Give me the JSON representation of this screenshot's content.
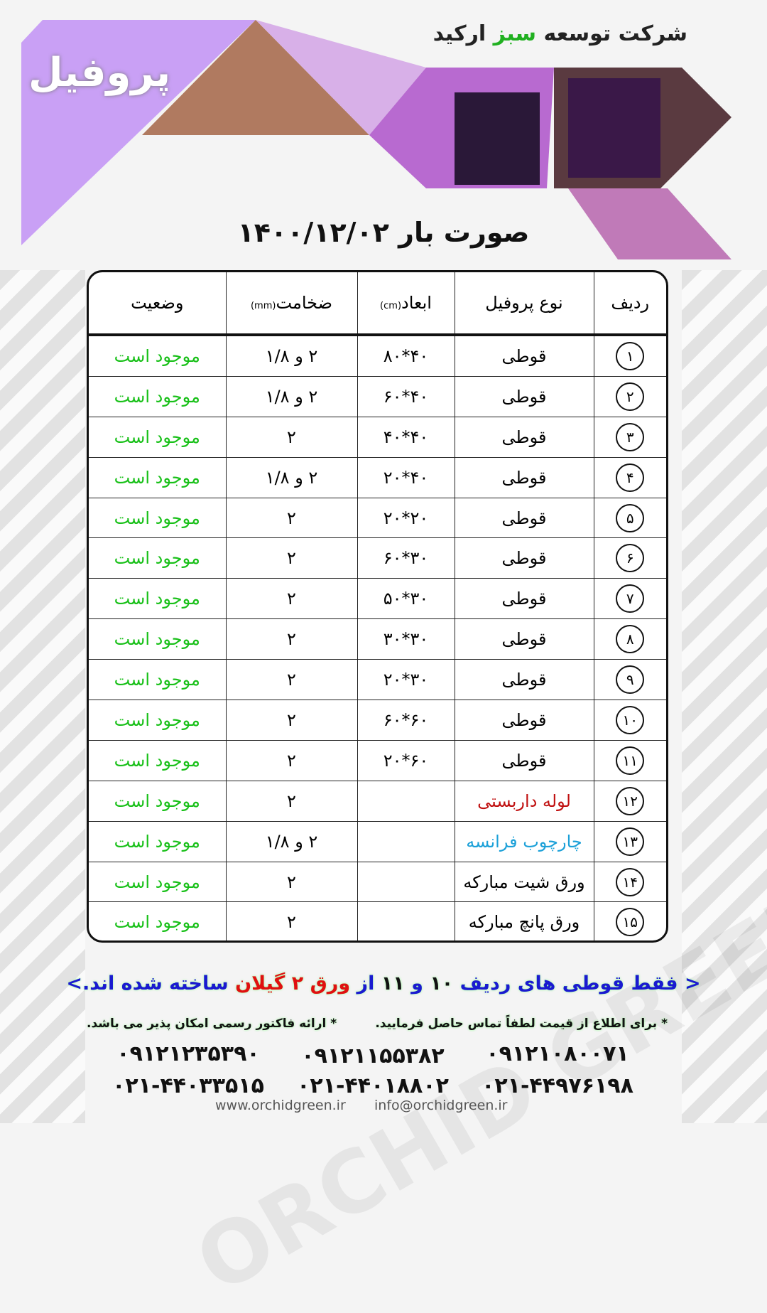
{
  "header": {
    "company_pre": "شرکت توسعه ",
    "company_green": "سبز",
    "company_post": " ارکید",
    "profile": "پروفیل",
    "date_title": "صورت بار ۱۴۰۰/۱۲/۰۲"
  },
  "watermark": "ORCHID GREEN DEVELOPMENT",
  "colors": {
    "accent": "#c9a0f5",
    "status": "#18c018",
    "red": "#c01010",
    "blue": "#1ba0d8"
  },
  "table": {
    "headers": {
      "row": "ردیف",
      "type": "نوع پروفیل",
      "dims": "ابعاد",
      "dims_unit": "(cm)",
      "thick": "ضخامت",
      "thick_unit": "(mm)",
      "status": "وضعیت"
    },
    "rows": [
      {
        "n": "۱",
        "type": "قوطی",
        "dims": "۴۰*۸۰",
        "thick": "۲ و ۱/۸",
        "status": "موجود است"
      },
      {
        "n": "۲",
        "type": "قوطی",
        "dims": "۴۰*۶۰",
        "thick": "۲ و ۱/۸",
        "status": "موجود است"
      },
      {
        "n": "۳",
        "type": "قوطی",
        "dims": "۴۰*۴۰",
        "thick": "۲",
        "status": "موجود است"
      },
      {
        "n": "۴",
        "type": "قوطی",
        "dims": "۴۰*۲۰",
        "thick": "۲ و ۱/۸",
        "status": "موجود است"
      },
      {
        "n": "۵",
        "type": "قوطی",
        "dims": "۲۰*۲۰",
        "thick": "۲",
        "status": "موجود است"
      },
      {
        "n": "۶",
        "type": "قوطی",
        "dims": "۳۰*۶۰",
        "thick": "۲",
        "status": "موجود است"
      },
      {
        "n": "۷",
        "type": "قوطی",
        "dims": "۳۰*۵۰",
        "thick": "۲",
        "status": "موجود است"
      },
      {
        "n": "۸",
        "type": "قوطی",
        "dims": "۳۰*۳۰",
        "thick": "۲",
        "status": "موجود است"
      },
      {
        "n": "۹",
        "type": "قوطی",
        "dims": "۳۰*۲۰",
        "thick": "۲",
        "status": "موجود است"
      },
      {
        "n": "۱۰",
        "type": "قوطی",
        "dims": "۶۰*۶۰",
        "thick": "۲",
        "status": "موجود است"
      },
      {
        "n": "۱۱",
        "type": "قوطی",
        "dims": "۶۰*۲۰",
        "thick": "۲",
        "status": "موجود است"
      },
      {
        "n": "۱۲",
        "type": "لوله داربستی",
        "dims": "",
        "thick": "۲",
        "status": "موجود است",
        "cls": "red"
      },
      {
        "n": "۱۳",
        "type": "چارچوب فرانسه",
        "dims": "",
        "thick": "۲ و ۱/۸",
        "status": "موجود است",
        "cls": "blue"
      },
      {
        "n": "۱۴",
        "type": "ورق شیت مبارکه",
        "dims": "",
        "thick": "۲",
        "status": "موجود است"
      },
      {
        "n": "۱۵",
        "type": "ورق پانچ مبارکه",
        "dims": "",
        "thick": "۲",
        "status": "موجود است"
      }
    ]
  },
  "note": {
    "a": "< فقط قوطی های ردیف ",
    "b": "۱۰",
    "c": " و ",
    "d": "۱۱",
    "e": " از ",
    "f": "ورق ۲ گیلان",
    "g": " ساخته شده اند.>"
  },
  "info": {
    "price": "* برای اطلاع از قیمت لطفاً تماس حاصل فرمایید.",
    "invoice": "* ارائه فاکتور رسمی امکان پذیر می باشد."
  },
  "phones": [
    "۰۹۱۲۱۰۸۰۰۷۱",
    "۰۹۱۲۱۱۵۵۳۸۲",
    "۰۹۱۲۱۲۳۵۳۹۰",
    "۰۲۱-۴۴۹۷۶۱۹۸",
    "۰۲۱-۴۴۰۱۸۸۰۲",
    "۰۲۱-۴۴۰۳۳۵۱۵"
  ],
  "footer": {
    "web": "www.orchidgreen.ir",
    "email": "info@orchidgreen.ir"
  }
}
